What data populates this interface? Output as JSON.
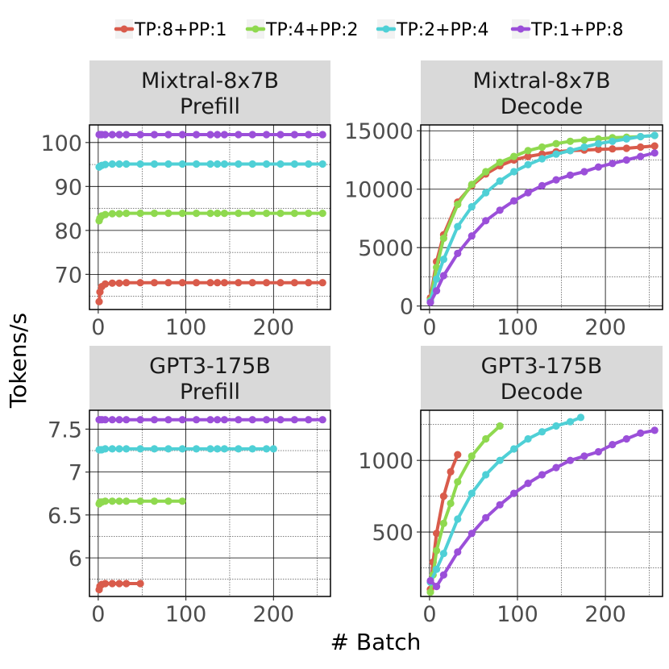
{
  "figure": {
    "ylabel": "Tokens/s",
    "xlabel": "# Batch"
  },
  "legend": [
    {
      "label": "TP:8+PP:1",
      "color": "#d95b4b"
    },
    {
      "label": "TP:4+PP:2",
      "color": "#8fd94f"
    },
    {
      "label": "TP:2+PP:4",
      "color": "#4fd0d6"
    },
    {
      "label": "TP:1+PP:8",
      "color": "#9b4fd9"
    }
  ],
  "chart_data": [
    {
      "type": "line",
      "title": "Mixtral-8x7B\nPrefill",
      "title_lines": [
        "Mixtral-8x7B",
        "Prefill"
      ],
      "xlim": [
        -10,
        265
      ],
      "ylim": [
        62,
        104
      ],
      "xticks": [
        0,
        100,
        200
      ],
      "xtick_labels": [
        "0",
        "100",
        "200"
      ],
      "yticks": [
        70,
        80,
        90,
        100
      ],
      "ytick_labels": [
        "70",
        "80",
        "90",
        "100"
      ],
      "minor_yticks": [
        65,
        75,
        85,
        95
      ],
      "series": [
        {
          "name": "TP:8+PP:1",
          "x": [
            1,
            2,
            4,
            8,
            16,
            24,
            32,
            48,
            64,
            80,
            96,
            112,
            128,
            136,
            144,
            160,
            176,
            192,
            208,
            224,
            240,
            256
          ],
          "y": [
            63.8,
            66,
            67.2,
            67.8,
            68,
            68,
            68.1,
            68.1,
            68.1,
            68.1,
            68.1,
            68.1,
            68.1,
            68.1,
            68.1,
            68.1,
            68.1,
            68.1,
            68.1,
            68.1,
            68.1,
            68.1
          ]
        },
        {
          "name": "TP:4+PP:2",
          "x": [
            1,
            2,
            4,
            8,
            16,
            24,
            32,
            48,
            64,
            80,
            96,
            112,
            128,
            136,
            144,
            160,
            176,
            192,
            208,
            224,
            240,
            256
          ],
          "y": [
            82.2,
            82.8,
            83.3,
            83.6,
            83.8,
            83.8,
            83.9,
            83.9,
            83.9,
            83.9,
            83.9,
            83.9,
            83.9,
            83.9,
            83.9,
            83.9,
            83.9,
            83.9,
            83.9,
            83.9,
            83.9,
            83.9
          ]
        },
        {
          "name": "TP:2+PP:4",
          "x": [
            1,
            2,
            4,
            8,
            16,
            24,
            32,
            48,
            64,
            80,
            96,
            112,
            128,
            136,
            144,
            160,
            176,
            192,
            208,
            224,
            240,
            256
          ],
          "y": [
            94.4,
            94.6,
            94.8,
            95,
            95.1,
            95.1,
            95.1,
            95.1,
            95.1,
            95.1,
            95.1,
            95.1,
            95.1,
            95.1,
            95.1,
            95.1,
            95.1,
            95.1,
            95.1,
            95.1,
            95.1,
            95.1
          ]
        },
        {
          "name": "TP:1+PP:8",
          "x": [
            1,
            2,
            4,
            8,
            16,
            24,
            32,
            48,
            64,
            80,
            96,
            112,
            128,
            136,
            144,
            160,
            176,
            192,
            208,
            224,
            240,
            256
          ],
          "y": [
            101.8,
            101.8,
            101.8,
            101.8,
            101.8,
            101.8,
            101.8,
            101.8,
            101.8,
            101.8,
            101.8,
            101.8,
            101.8,
            101.8,
            101.8,
            101.8,
            101.8,
            101.8,
            101.8,
            101.8,
            101.8,
            101.8
          ]
        }
      ]
    },
    {
      "type": "line",
      "title": "Mixtral-8x7B\nDecode",
      "title_lines": [
        "Mixtral-8x7B",
        "Decode"
      ],
      "xlim": [
        -10,
        265
      ],
      "ylim": [
        -300,
        15500
      ],
      "xticks": [
        0,
        100,
        200
      ],
      "xtick_labels": [
        "0",
        "100",
        "200"
      ],
      "yticks": [
        0,
        5000,
        10000,
        15000
      ],
      "ytick_labels": [
        "0",
        "5000",
        "10000",
        "15000"
      ],
      "minor_yticks": [
        2500,
        7500,
        12500
      ],
      "series": [
        {
          "name": "TP:8+PP:1",
          "x": [
            1,
            8,
            16,
            32,
            48,
            64,
            80,
            96,
            112,
            128,
            144,
            160,
            176,
            192,
            208,
            224,
            240,
            256
          ],
          "y": [
            700,
            3800,
            6100,
            8900,
            10300,
            11300,
            12000,
            12500,
            12800,
            13000,
            13200,
            13300,
            13350,
            13400,
            13450,
            13500,
            13600,
            13700
          ]
        },
        {
          "name": "TP:4+PP:2",
          "x": [
            1,
            8,
            16,
            32,
            48,
            64,
            80,
            96,
            112,
            128,
            144,
            160,
            176,
            192,
            208,
            224,
            240,
            256
          ],
          "y": [
            500,
            3300,
            5800,
            8700,
            10400,
            11500,
            12300,
            12800,
            13300,
            13600,
            13900,
            14100,
            14200,
            14300,
            14400,
            14450,
            14500,
            14600
          ]
        },
        {
          "name": "TP:2+PP:4",
          "x": [
            1,
            8,
            16,
            32,
            48,
            64,
            80,
            96,
            112,
            128,
            144,
            160,
            176,
            192,
            208,
            224,
            240,
            256
          ],
          "y": [
            400,
            2300,
            4000,
            6800,
            8500,
            9700,
            10700,
            11500,
            12100,
            12600,
            13000,
            13300,
            13600,
            13900,
            14100,
            14300,
            14500,
            14600
          ]
        },
        {
          "name": "TP:1+PP:8",
          "x": [
            1,
            8,
            16,
            32,
            48,
            64,
            80,
            96,
            112,
            128,
            144,
            160,
            176,
            192,
            208,
            224,
            240,
            256
          ],
          "y": [
            300,
            1300,
            2600,
            4500,
            6000,
            7300,
            8200,
            9000,
            9700,
            10300,
            10800,
            11200,
            11500,
            11900,
            12200,
            12500,
            12800,
            13100
          ]
        }
      ]
    },
    {
      "type": "line",
      "title": "GPT3-175B\nPrefill",
      "title_lines": [
        "GPT3-175B",
        "Prefill"
      ],
      "xlim": [
        -10,
        265
      ],
      "ylim": [
        5.55,
        7.72
      ],
      "xticks": [
        0,
        100,
        200
      ],
      "xtick_labels": [
        "0",
        "100",
        "200"
      ],
      "yticks": [
        6,
        6.5,
        7,
        7.5
      ],
      "ytick_labels": [
        "6",
        "6.5",
        "7",
        "7.5"
      ],
      "minor_yticks": [
        5.75,
        6.25,
        6.75,
        7.25
      ],
      "series": [
        {
          "name": "TP:8+PP:1",
          "x": [
            1,
            2,
            4,
            8,
            16,
            24,
            32,
            48
          ],
          "y": [
            5.63,
            5.67,
            5.69,
            5.7,
            5.7,
            5.7,
            5.7,
            5.7
          ]
        },
        {
          "name": "TP:4+PP:2",
          "x": [
            1,
            2,
            4,
            8,
            16,
            24,
            32,
            48,
            64,
            80,
            96
          ],
          "y": [
            6.63,
            6.65,
            6.65,
            6.66,
            6.66,
            6.66,
            6.66,
            6.66,
            6.66,
            6.66,
            6.66
          ]
        },
        {
          "name": "TP:2+PP:4",
          "x": [
            1,
            2,
            4,
            8,
            16,
            24,
            32,
            48,
            64,
            80,
            96,
            112,
            128,
            136,
            144,
            160,
            176,
            192,
            200
          ],
          "y": [
            7.26,
            7.26,
            7.26,
            7.27,
            7.27,
            7.27,
            7.27,
            7.27,
            7.27,
            7.27,
            7.27,
            7.27,
            7.27,
            7.27,
            7.27,
            7.27,
            7.27,
            7.27,
            7.27
          ]
        },
        {
          "name": "TP:1+PP:8",
          "x": [
            1,
            2,
            4,
            8,
            16,
            24,
            32,
            48,
            64,
            80,
            96,
            112,
            128,
            136,
            144,
            160,
            176,
            192,
            208,
            224,
            240,
            256
          ],
          "y": [
            7.61,
            7.61,
            7.61,
            7.61,
            7.61,
            7.61,
            7.61,
            7.61,
            7.61,
            7.61,
            7.61,
            7.61,
            7.61,
            7.61,
            7.61,
            7.61,
            7.61,
            7.61,
            7.61,
            7.61,
            7.61,
            7.61
          ]
        }
      ]
    },
    {
      "type": "line",
      "title": "GPT3-175B\nDecode",
      "title_lines": [
        "GPT3-175B",
        "Decode"
      ],
      "xlim": [
        -10,
        265
      ],
      "ylim": [
        50,
        1350
      ],
      "xticks": [
        0,
        100,
        200
      ],
      "xtick_labels": [
        "0",
        "100",
        "200"
      ],
      "yticks": [
        500,
        1000
      ],
      "ytick_labels": [
        "500",
        "1000"
      ],
      "minor_yticks": [
        250,
        750,
        1250
      ],
      "series": [
        {
          "name": "TP:8+PP:1",
          "x": [
            1,
            4,
            8,
            16,
            24,
            32
          ],
          "y": [
            100,
            290,
            490,
            750,
            920,
            1040
          ]
        },
        {
          "name": "TP:4+PP:2",
          "x": [
            1,
            4,
            8,
            16,
            24,
            32,
            48,
            64,
            80
          ],
          "y": [
            80,
            200,
            370,
            560,
            700,
            850,
            1030,
            1150,
            1240
          ]
        },
        {
          "name": "TP:2+PP:4",
          "x": [
            1,
            8,
            16,
            32,
            48,
            64,
            80,
            96,
            112,
            128,
            144,
            160,
            172
          ],
          "y": [
            150,
            240,
            350,
            590,
            770,
            900,
            1000,
            1080,
            1150,
            1200,
            1240,
            1270,
            1300
          ]
        },
        {
          "name": "TP:1+PP:8",
          "x": [
            1,
            8,
            16,
            32,
            48,
            64,
            80,
            96,
            112,
            128,
            144,
            160,
            176,
            192,
            208,
            224,
            240,
            256
          ],
          "y": [
            160,
            120,
            200,
            360,
            490,
            600,
            690,
            770,
            840,
            900,
            950,
            1000,
            1030,
            1060,
            1110,
            1150,
            1190,
            1210
          ]
        }
      ]
    }
  ]
}
